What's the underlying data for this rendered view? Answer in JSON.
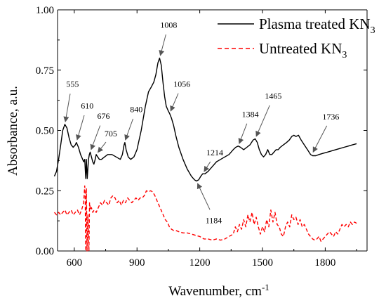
{
  "chart_data": {
    "type": "line",
    "xlabel": "Wavenumber, cm",
    "xlabel_sup": "-1",
    "ylabel": "Absorbance, a.u.",
    "xlim": [
      520,
      2000
    ],
    "ylim": [
      0,
      1.0
    ],
    "x_ticks": [
      600,
      900,
      1200,
      1500,
      1800
    ],
    "x_tick_labels": [
      "600",
      "900",
      "1200",
      "1500",
      "1800"
    ],
    "y_ticks": [
      0,
      0.25,
      0.5,
      0.75,
      1.0
    ],
    "y_tick_labels": [
      "0.00",
      "0.25",
      "0.50",
      "0.75",
      "1.00"
    ],
    "grid": false,
    "legend_position": "top-right",
    "series": [
      {
        "name": "Plasma treated KN",
        "name_sub": "3",
        "color": "#000000",
        "style": "solid",
        "points": [
          [
            505,
            0.31
          ],
          [
            515,
            0.33
          ],
          [
            525,
            0.38
          ],
          [
            535,
            0.44
          ],
          [
            545,
            0.5
          ],
          [
            555,
            0.525
          ],
          [
            565,
            0.51
          ],
          [
            575,
            0.47
          ],
          [
            585,
            0.44
          ],
          [
            595,
            0.43
          ],
          [
            605,
            0.44
          ],
          [
            610,
            0.45
          ],
          [
            620,
            0.43
          ],
          [
            630,
            0.4
          ],
          [
            640,
            0.38
          ],
          [
            645,
            0.37
          ],
          [
            650,
            0.38
          ],
          [
            655,
            0.3
          ],
          [
            658,
            0.38
          ],
          [
            662,
            0.3
          ],
          [
            668,
            0.38
          ],
          [
            672,
            0.4
          ],
          [
            676,
            0.41
          ],
          [
            682,
            0.39
          ],
          [
            688,
            0.37
          ],
          [
            694,
            0.36
          ],
          [
            700,
            0.38
          ],
          [
            705,
            0.4
          ],
          [
            712,
            0.39
          ],
          [
            720,
            0.38
          ],
          [
            730,
            0.38
          ],
          [
            745,
            0.39
          ],
          [
            760,
            0.4
          ],
          [
            780,
            0.4
          ],
          [
            800,
            0.39
          ],
          [
            820,
            0.38
          ],
          [
            830,
            0.4
          ],
          [
            838,
            0.44
          ],
          [
            842,
            0.45
          ],
          [
            848,
            0.42
          ],
          [
            858,
            0.39
          ],
          [
            870,
            0.38
          ],
          [
            885,
            0.39
          ],
          [
            900,
            0.42
          ],
          [
            920,
            0.5
          ],
          [
            940,
            0.6
          ],
          [
            955,
            0.66
          ],
          [
            968,
            0.68
          ],
          [
            980,
            0.7
          ],
          [
            990,
            0.73
          ],
          [
            1000,
            0.78
          ],
          [
            1008,
            0.8
          ],
          [
            1016,
            0.77
          ],
          [
            1024,
            0.7
          ],
          [
            1032,
            0.64
          ],
          [
            1040,
            0.6
          ],
          [
            1050,
            0.58
          ],
          [
            1056,
            0.57
          ],
          [
            1065,
            0.55
          ],
          [
            1075,
            0.52
          ],
          [
            1085,
            0.48
          ],
          [
            1100,
            0.43
          ],
          [
            1120,
            0.38
          ],
          [
            1140,
            0.34
          ],
          [
            1160,
            0.31
          ],
          [
            1175,
            0.295
          ],
          [
            1184,
            0.29
          ],
          [
            1195,
            0.295
          ],
          [
            1205,
            0.31
          ],
          [
            1214,
            0.32
          ],
          [
            1225,
            0.32
          ],
          [
            1240,
            0.33
          ],
          [
            1260,
            0.35
          ],
          [
            1280,
            0.37
          ],
          [
            1300,
            0.38
          ],
          [
            1320,
            0.39
          ],
          [
            1340,
            0.4
          ],
          [
            1360,
            0.42
          ],
          [
            1372,
            0.43
          ],
          [
            1384,
            0.435
          ],
          [
            1395,
            0.43
          ],
          [
            1410,
            0.42
          ],
          [
            1425,
            0.43
          ],
          [
            1440,
            0.44
          ],
          [
            1455,
            0.46
          ],
          [
            1465,
            0.465
          ],
          [
            1475,
            0.45
          ],
          [
            1485,
            0.42
          ],
          [
            1495,
            0.4
          ],
          [
            1505,
            0.39
          ],
          [
            1515,
            0.4
          ],
          [
            1525,
            0.42
          ],
          [
            1535,
            0.4
          ],
          [
            1545,
            0.4
          ],
          [
            1555,
            0.41
          ],
          [
            1565,
            0.42
          ],
          [
            1575,
            0.42
          ],
          [
            1585,
            0.43
          ],
          [
            1600,
            0.44
          ],
          [
            1615,
            0.45
          ],
          [
            1628,
            0.46
          ],
          [
            1640,
            0.475
          ],
          [
            1650,
            0.48
          ],
          [
            1660,
            0.475
          ],
          [
            1672,
            0.48
          ],
          [
            1685,
            0.46
          ],
          [
            1700,
            0.44
          ],
          [
            1715,
            0.42
          ],
          [
            1730,
            0.4
          ],
          [
            1740,
            0.395
          ],
          [
            1755,
            0.395
          ],
          [
            1770,
            0.4
          ],
          [
            1790,
            0.405
          ],
          [
            1810,
            0.41
          ],
          [
            1830,
            0.415
          ],
          [
            1850,
            0.42
          ],
          [
            1870,
            0.425
          ],
          [
            1890,
            0.43
          ],
          [
            1910,
            0.435
          ],
          [
            1930,
            0.44
          ],
          [
            1950,
            0.445
          ]
        ]
      },
      {
        "name": "Untreated KN",
        "name_sub": "3",
        "color": "#ff0000",
        "style": "dashed",
        "points": [
          [
            505,
            0.16
          ],
          [
            515,
            0.15
          ],
          [
            525,
            0.16
          ],
          [
            535,
            0.15
          ],
          [
            545,
            0.16
          ],
          [
            555,
            0.17
          ],
          [
            565,
            0.15
          ],
          [
            575,
            0.16
          ],
          [
            585,
            0.17
          ],
          [
            595,
            0.15
          ],
          [
            605,
            0.16
          ],
          [
            615,
            0.17
          ],
          [
            625,
            0.15
          ],
          [
            635,
            0.17
          ],
          [
            645,
            0.2
          ],
          [
            650,
            0.27
          ],
          [
            652,
            0.24
          ],
          [
            655,
            0.0
          ],
          [
            658,
            0.26
          ],
          [
            661,
            0.0
          ],
          [
            665,
            0.15
          ],
          [
            670,
            0.0
          ],
          [
            673,
            0.2
          ],
          [
            677,
            0.17
          ],
          [
            682,
            0.18
          ],
          [
            688,
            0.16
          ],
          [
            695,
            0.17
          ],
          [
            705,
            0.16
          ],
          [
            715,
            0.18
          ],
          [
            725,
            0.2
          ],
          [
            735,
            0.19
          ],
          [
            745,
            0.21
          ],
          [
            755,
            0.2
          ],
          [
            765,
            0.19
          ],
          [
            775,
            0.22
          ],
          [
            785,
            0.23
          ],
          [
            795,
            0.22
          ],
          [
            805,
            0.2
          ],
          [
            815,
            0.21
          ],
          [
            825,
            0.19
          ],
          [
            835,
            0.21
          ],
          [
            845,
            0.2
          ],
          [
            855,
            0.22
          ],
          [
            865,
            0.21
          ],
          [
            875,
            0.2
          ],
          [
            885,
            0.21
          ],
          [
            895,
            0.22
          ],
          [
            905,
            0.21
          ],
          [
            915,
            0.22
          ],
          [
            925,
            0.22
          ],
          [
            935,
            0.23
          ],
          [
            945,
            0.25
          ],
          [
            955,
            0.245
          ],
          [
            965,
            0.25
          ],
          [
            975,
            0.245
          ],
          [
            985,
            0.23
          ],
          [
            995,
            0.21
          ],
          [
            1005,
            0.19
          ],
          [
            1015,
            0.17
          ],
          [
            1025,
            0.15
          ],
          [
            1035,
            0.13
          ],
          [
            1045,
            0.12
          ],
          [
            1055,
            0.1
          ],
          [
            1065,
            0.09
          ],
          [
            1075,
            0.085
          ],
          [
            1085,
            0.085
          ],
          [
            1100,
            0.08
          ],
          [
            1120,
            0.075
          ],
          [
            1140,
            0.075
          ],
          [
            1160,
            0.07
          ],
          [
            1180,
            0.065
          ],
          [
            1200,
            0.06
          ],
          [
            1220,
            0.05
          ],
          [
            1240,
            0.05
          ],
          [
            1260,
            0.045
          ],
          [
            1280,
            0.05
          ],
          [
            1300,
            0.045
          ],
          [
            1320,
            0.05
          ],
          [
            1340,
            0.06
          ],
          [
            1360,
            0.07
          ],
          [
            1370,
            0.1
          ],
          [
            1380,
            0.08
          ],
          [
            1390,
            0.11
          ],
          [
            1400,
            0.09
          ],
          [
            1410,
            0.13
          ],
          [
            1420,
            0.1
          ],
          [
            1430,
            0.15
          ],
          [
            1440,
            0.12
          ],
          [
            1450,
            0.16
          ],
          [
            1460,
            0.11
          ],
          [
            1470,
            0.14
          ],
          [
            1480,
            0.1
          ],
          [
            1490,
            0.07
          ],
          [
            1500,
            0.1
          ],
          [
            1510,
            0.08
          ],
          [
            1520,
            0.13
          ],
          [
            1530,
            0.1
          ],
          [
            1540,
            0.17
          ],
          [
            1550,
            0.12
          ],
          [
            1560,
            0.16
          ],
          [
            1570,
            0.11
          ],
          [
            1580,
            0.1
          ],
          [
            1590,
            0.07
          ],
          [
            1600,
            0.06
          ],
          [
            1610,
            0.1
          ],
          [
            1620,
            0.12
          ],
          [
            1630,
            0.1
          ],
          [
            1640,
            0.15
          ],
          [
            1650,
            0.13
          ],
          [
            1660,
            0.14
          ],
          [
            1670,
            0.11
          ],
          [
            1680,
            0.13
          ],
          [
            1690,
            0.1
          ],
          [
            1700,
            0.11
          ],
          [
            1710,
            0.09
          ],
          [
            1720,
            0.07
          ],
          [
            1730,
            0.06
          ],
          [
            1740,
            0.05
          ],
          [
            1750,
            0.045
          ],
          [
            1760,
            0.05
          ],
          [
            1770,
            0.06
          ],
          [
            1780,
            0.04
          ],
          [
            1790,
            0.05
          ],
          [
            1800,
            0.06
          ],
          [
            1810,
            0.07
          ],
          [
            1820,
            0.08
          ],
          [
            1830,
            0.07
          ],
          [
            1840,
            0.06
          ],
          [
            1850,
            0.08
          ],
          [
            1860,
            0.07
          ],
          [
            1870,
            0.09
          ],
          [
            1880,
            0.11
          ],
          [
            1890,
            0.1
          ],
          [
            1900,
            0.11
          ],
          [
            1910,
            0.1
          ],
          [
            1920,
            0.12
          ],
          [
            1930,
            0.11
          ],
          [
            1940,
            0.12
          ],
          [
            1950,
            0.115
          ]
        ]
      }
    ],
    "annotations": [
      {
        "label": "555",
        "x": 555,
        "y": 0.525,
        "tx": 585,
        "ty": 0.675
      },
      {
        "label": "610",
        "x": 610,
        "y": 0.45,
        "tx": 655,
        "ty": 0.585
      },
      {
        "label": "676",
        "x": 676,
        "y": 0.41,
        "tx": 733,
        "ty": 0.542
      },
      {
        "label": "705",
        "x": 705,
        "y": 0.4,
        "tx": 768,
        "ty": 0.47
      },
      {
        "label": "840",
        "x": 840,
        "y": 0.45,
        "tx": 890,
        "ty": 0.57
      },
      {
        "label": "1008",
        "x": 1008,
        "y": 0.8,
        "tx": 1045,
        "ty": 0.92
      },
      {
        "label": "1056",
        "x": 1056,
        "y": 0.57,
        "tx": 1108,
        "ty": 0.675
      },
      {
        "label": "1214",
        "x": 1214,
        "y": 0.32,
        "tx": 1265,
        "ty": 0.39
      },
      {
        "label": "1184",
        "x": 1184,
        "y": 0.29,
        "tx": 1260,
        "ty": 0.15
      },
      {
        "label": "1384",
        "x": 1384,
        "y": 0.435,
        "tx": 1435,
        "ty": 0.55
      },
      {
        "label": "1465",
        "x": 1465,
        "y": 0.465,
        "tx": 1545,
        "ty": 0.625
      },
      {
        "label": "1736",
        "x": 1736,
        "y": 0.4,
        "tx": 1820,
        "ty": 0.54
      }
    ]
  }
}
